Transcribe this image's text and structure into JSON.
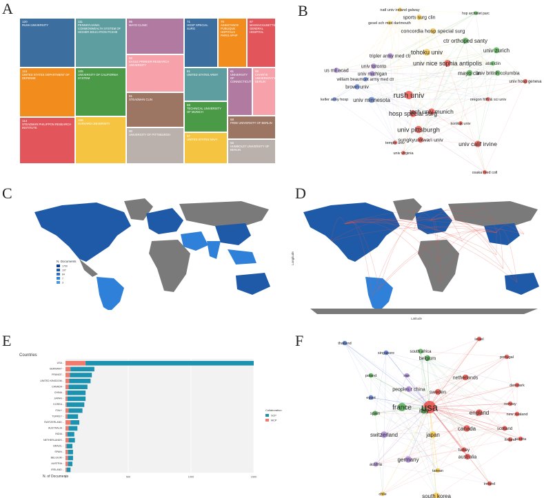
{
  "panels": {
    "a": "A",
    "b": "B",
    "c": "C",
    "d": "D",
    "e": "E",
    "f": "F"
  },
  "treemap": [
    {
      "value": "120",
      "label": "RUSH UNIVERSITY",
      "color": "#3c6e9f"
    },
    {
      "value": "111",
      "label": "PENNSYLVANIA COMMONWEALTH SYSTEM OF HIGHER EDUCATION PCSHE",
      "color": "#5f9ea0"
    },
    {
      "value": "116",
      "label": "UNITED STATES DEPARTMENT OF DEFENSE",
      "color": "#f28c1c"
    },
    {
      "value": "105",
      "label": "UNIVERSITY OF CALIFORNIA SYSTEM",
      "color": "#4a9a48"
    },
    {
      "value": "114",
      "label": "STEADMAN PHILIPPON RESEARCH INSTITUTE",
      "color": "#e2555a"
    },
    {
      "value": "106",
      "label": "HARVARD UNIVERSITY",
      "color": "#f5c542"
    },
    {
      "value": "95",
      "label": "MAYO CLINIC",
      "color": "#b07aa1"
    },
    {
      "value": "92",
      "label": "EAGLE PRINKER RESEARCH UNIVERSITY",
      "color": "#f7a1ab"
    },
    {
      "value": "91",
      "label": "STEADMAN CLIN",
      "color": "#9c7563"
    },
    {
      "value": "90",
      "label": "UNIVERSITY OF PITTSBURGH",
      "color": "#bab0ac"
    },
    {
      "value": "71",
      "label": "HOSP SPECIAL SURG",
      "color": "#3c6e9f"
    },
    {
      "value": "70",
      "label": "ASSISTANCE PUBLIQUE HOPITAUX PARIS APHP",
      "color": "#f28c1c"
    },
    {
      "value": "67",
      "label": "MASSACHUSETTS GENERAL HOSPITAL",
      "color": "#e2555a"
    },
    {
      "value": "61",
      "label": "UNITED STATES ARMY",
      "color": "#5f9ea0"
    },
    {
      "value": "61",
      "label": "UNIVERSITY OF CONNECTICUT",
      "color": "#b07aa1"
    },
    {
      "value": "55",
      "label": "CHARITE UNIVERSITATSMEDIZIN BERLIN",
      "color": "#f7a1ab"
    },
    {
      "value": "59",
      "label": "TECHNICAL UNIVERSITY OF MUNICH",
      "color": "#4a9a48"
    },
    {
      "value": "58",
      "label": "FREE UNIVERSITY OF BERLIN",
      "color": "#9c7563"
    },
    {
      "value": "57",
      "label": "UNITED STATES NAVY",
      "color": "#f5c542"
    },
    {
      "value": "56",
      "label": "HUMBOLDT UNIVERSITY OF BERLIN",
      "color": "#bab0ac"
    }
  ],
  "network_b": {
    "labels": [
      {
        "t": "natl univ ireland galway",
        "s": 5.5
      },
      {
        "t": "sports surg clin",
        "s": 7
      },
      {
        "t": "gesel sch med dartmouth",
        "s": 5.5
      },
      {
        "t": "concordia hosp special surg",
        "s": 7.5
      },
      {
        "t": "hop archidiet parc",
        "s": 5
      },
      {
        "t": "ctr orthoped santy",
        "s": 8
      },
      {
        "t": "tohoku univ",
        "s": 9
      },
      {
        "t": "univ zurich",
        "s": 8
      },
      {
        "t": "tripler army med ctr",
        "s": 7
      },
      {
        "t": "univ nice sophia antipolis",
        "s": 9
      },
      {
        "t": "atos clin",
        "s": 6
      },
      {
        "t": "us mil acad",
        "s": 7
      },
      {
        "t": "univ toronto",
        "s": 7
      },
      {
        "t": "univ michigan",
        "s": 7
      },
      {
        "t": "mayo clin",
        "s": 8
      },
      {
        "t": "univ british columbia",
        "s": 7
      },
      {
        "t": "william beaumont army med ctr",
        "s": 6
      },
      {
        "t": "univ hosp geneva",
        "s": 6
      },
      {
        "t": "brown univ",
        "s": 7
      },
      {
        "t": "rush univ",
        "s": 11
      },
      {
        "t": "keller army hosp",
        "s": 5.5
      },
      {
        "t": "univ minnesota",
        "s": 8
      },
      {
        "t": "hosp special surg",
        "s": 9
      },
      {
        "t": "tech univ munich",
        "s": 8.5
      },
      {
        "t": "oregon hlth & sci univ",
        "s": 5.5
      },
      {
        "t": "univ pittsburgh",
        "s": 9.5
      },
      {
        "t": "konkuk univ",
        "s": 5.5
      },
      {
        "t": "sungkyunkwan univ",
        "s": 7.5
      },
      {
        "t": "temple univ",
        "s": 5.5
      },
      {
        "t": "univ calif irvine",
        "s": 8.5
      },
      {
        "t": "univ virginia",
        "s": 5.5
      },
      {
        "t": "osaka med coll",
        "s": 5.5
      }
    ]
  },
  "map_c": {
    "legend_title": "N. Documents",
    "legend": [
      "1700",
      "107",
      "84",
      "7",
      "3"
    ]
  },
  "map_d": {
    "xlabel": "Latitude",
    "ylabel": "Longitude"
  },
  "chart_data": {
    "type": "bar",
    "title": "",
    "ylabel": "Countries",
    "xlabel": "N. of Documents",
    "xlim": [
      0,
      1500
    ],
    "xticks": [
      "0",
      "500",
      "1000",
      "1500"
    ],
    "legend_title": "Collaboration",
    "categories": [
      "USA",
      "GERMANY",
      "FRANCE",
      "UNITED KINGDOM",
      "CANADA",
      "CHINA",
      "JAPAN",
      "KOREA",
      "ITALY",
      "TURKEY",
      "SWITZERLAND",
      "AUSTRALIA",
      "INDIA",
      "NETHERLANDS",
      "BRAZIL",
      "SPAIN",
      "BELGIUM",
      "AUSTRIA",
      "IRELAND"
    ],
    "series": [
      {
        "name": "SCP",
        "color": "#1a92b0",
        "values": [
          1500,
          190,
          175,
          170,
          150,
          145,
          145,
          140,
          110,
          85,
          70,
          70,
          55,
          50,
          45,
          40,
          40,
          35,
          30
        ]
      },
      {
        "name": "MCP",
        "color": "#f07b6c",
        "values": [
          160,
          40,
          35,
          30,
          25,
          15,
          15,
          10,
          25,
          15,
          40,
          25,
          15,
          25,
          10,
          20,
          20,
          20,
          10
        ]
      }
    ]
  },
  "network_f": {
    "labels": [
      {
        "t": "thailand",
        "s": 5.5
      },
      {
        "t": "israel",
        "s": 5.5
      },
      {
        "t": "portugal",
        "s": 5.5
      },
      {
        "t": "singapore",
        "s": 5.5
      },
      {
        "t": "south africa",
        "s": 6
      },
      {
        "t": "belgium",
        "s": 7
      },
      {
        "t": "poland",
        "s": 5.5
      },
      {
        "t": "iran",
        "s": 5.5
      },
      {
        "t": "netherlands",
        "s": 7
      },
      {
        "t": "denmark",
        "s": 5.5
      },
      {
        "t": "peoples r china",
        "s": 7
      },
      {
        "t": "sweden",
        "s": 7
      },
      {
        "t": "egypt",
        "s": 5.5
      },
      {
        "t": "norway",
        "s": 5.5
      },
      {
        "t": "england",
        "s": 8
      },
      {
        "t": "new zealand",
        "s": 5.5
      },
      {
        "t": "france",
        "s": 10
      },
      {
        "t": "usa",
        "s": 15
      },
      {
        "t": "canada",
        "s": 8
      },
      {
        "t": "scotland",
        "s": 6
      },
      {
        "t": "italy",
        "s": 8
      },
      {
        "t": "spain",
        "s": 6
      },
      {
        "t": "austria",
        "s": 5.5
      },
      {
        "t": "switzerland",
        "s": 8
      },
      {
        "t": "japan",
        "s": 8
      },
      {
        "t": "turkey",
        "s": 6
      },
      {
        "t": "finland",
        "s": 5.5
      },
      {
        "t": "australia",
        "s": 7
      },
      {
        "t": "germany",
        "s": 8
      },
      {
        "t": "austria",
        "s": 6
      },
      {
        "t": "taiwan",
        "s": 5.5
      },
      {
        "t": "ireland",
        "s": 5.5
      },
      {
        "t": "south korea",
        "s": 8
      },
      {
        "t": "chile",
        "s": 5.5
      }
    ]
  }
}
